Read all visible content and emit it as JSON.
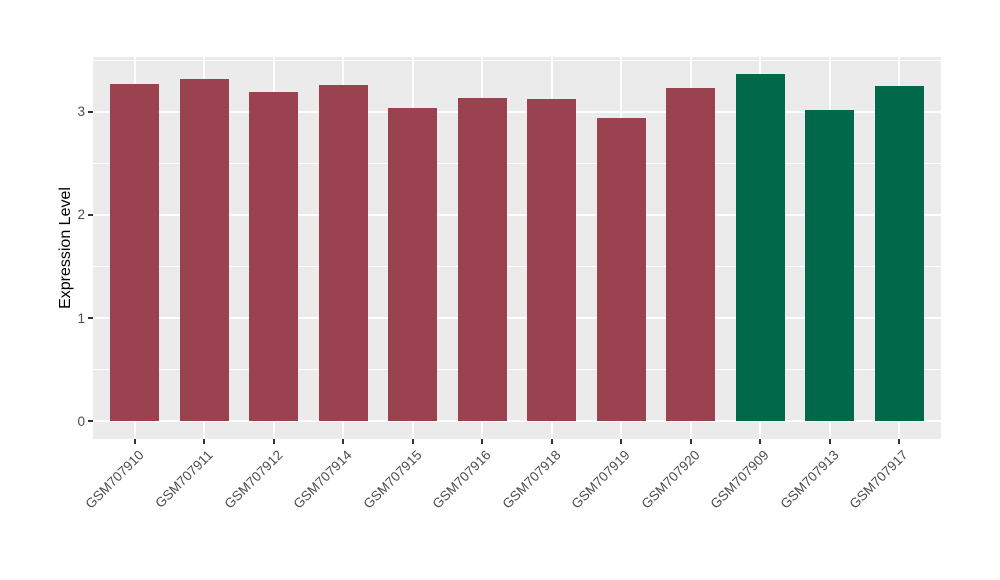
{
  "chart_data": {
    "type": "bar",
    "title": "",
    "xlabel": "",
    "ylabel": "Expression Level",
    "categories": [
      "GSM707910",
      "GSM707911",
      "GSM707912",
      "GSM707914",
      "GSM707915",
      "GSM707916",
      "GSM707918",
      "GSM707919",
      "GSM707920",
      "GSM707909",
      "GSM707913",
      "GSM707917"
    ],
    "values": [
      3.27,
      3.32,
      3.19,
      3.26,
      3.04,
      3.13,
      3.12,
      2.94,
      3.23,
      3.37,
      3.02,
      3.25
    ],
    "colors": [
      "#9A4250",
      "#9A4250",
      "#9A4250",
      "#9A4250",
      "#9A4250",
      "#9A4250",
      "#9A4250",
      "#9A4250",
      "#9A4250",
      "#02684A",
      "#02684A",
      "#02684A"
    ],
    "color_groups": [
      {
        "name": "group-1",
        "color": "#9A4250",
        "members": [
          "GSM707910",
          "GSM707911",
          "GSM707912",
          "GSM707914",
          "GSM707915",
          "GSM707916",
          "GSM707918",
          "GSM707919",
          "GSM707920"
        ]
      },
      {
        "name": "group-2",
        "color": "#02684A",
        "members": [
          "GSM707909",
          "GSM707913",
          "GSM707917"
        ]
      }
    ],
    "yticks": [
      0,
      1,
      2,
      3
    ],
    "yticks_minor": [
      0.5,
      1.5,
      2.5,
      3.5
    ],
    "ylim": [
      -0.17,
      3.53
    ],
    "legend": "none",
    "grid": "white major and minor gridlines on gray panel",
    "panel_background": "#EBEBEB",
    "gridline_color": "#FFFFFF",
    "tick_label_color": "#4D4D4D",
    "axis_title_color": "#000000",
    "x_label_rotation_deg": -45
  }
}
